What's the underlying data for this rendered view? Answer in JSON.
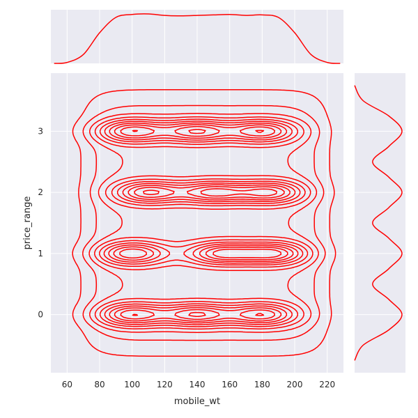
{
  "chart_data": {
    "type": "kde-jointplot",
    "xlabel": "mobile_wt",
    "ylabel": "price_range",
    "xlim": [
      50,
      230
    ],
    "ylim": [
      -0.95,
      3.95
    ],
    "x_ticks": [
      60,
      80,
      100,
      120,
      140,
      160,
      180,
      200,
      220
    ],
    "y_ticks": [
      0,
      1,
      2,
      3
    ],
    "grid": true,
    "line_color": "#ff0000",
    "background_color": "#eaeaf2",
    "contour_levels": 10,
    "density_centers": [
      {
        "x": 100,
        "y": 3.0
      },
      {
        "x": 140,
        "y": 3.0
      },
      {
        "x": 180,
        "y": 3.0
      },
      {
        "x": 110,
        "y": 2.0
      },
      {
        "x": 150,
        "y": 2.0
      },
      {
        "x": 185,
        "y": 2.0
      },
      {
        "x": 100,
        "y": 1.0
      },
      {
        "x": 155,
        "y": 1.0
      },
      {
        "x": 187,
        "y": 1.0
      },
      {
        "x": 100,
        "y": 0.0
      },
      {
        "x": 140,
        "y": 0.0
      },
      {
        "x": 180,
        "y": 0.0
      }
    ],
    "x_marginal": {
      "x": [
        52,
        60,
        70,
        80,
        90,
        100,
        110,
        120,
        130,
        140,
        150,
        160,
        170,
        180,
        190,
        200,
        210,
        220,
        228
      ],
      "density": [
        0.0,
        0.02,
        0.18,
        0.62,
        0.93,
        0.99,
        1.0,
        0.97,
        0.96,
        0.97,
        0.98,
        0.99,
        0.97,
        0.98,
        0.93,
        0.62,
        0.18,
        0.02,
        0.0
      ]
    },
    "y_marginal": {
      "y": [
        -0.75,
        -0.5,
        -0.25,
        0,
        0.25,
        0.5,
        0.75,
        1,
        1.25,
        1.5,
        1.75,
        2,
        2.25,
        2.5,
        2.75,
        3,
        3.25,
        3.5,
        3.75
      ],
      "density": [
        0.0,
        0.18,
        0.72,
        1.0,
        0.72,
        0.38,
        0.72,
        1.0,
        0.72,
        0.38,
        0.72,
        1.0,
        0.72,
        0.38,
        0.72,
        1.0,
        0.72,
        0.18,
        0.0
      ]
    }
  }
}
